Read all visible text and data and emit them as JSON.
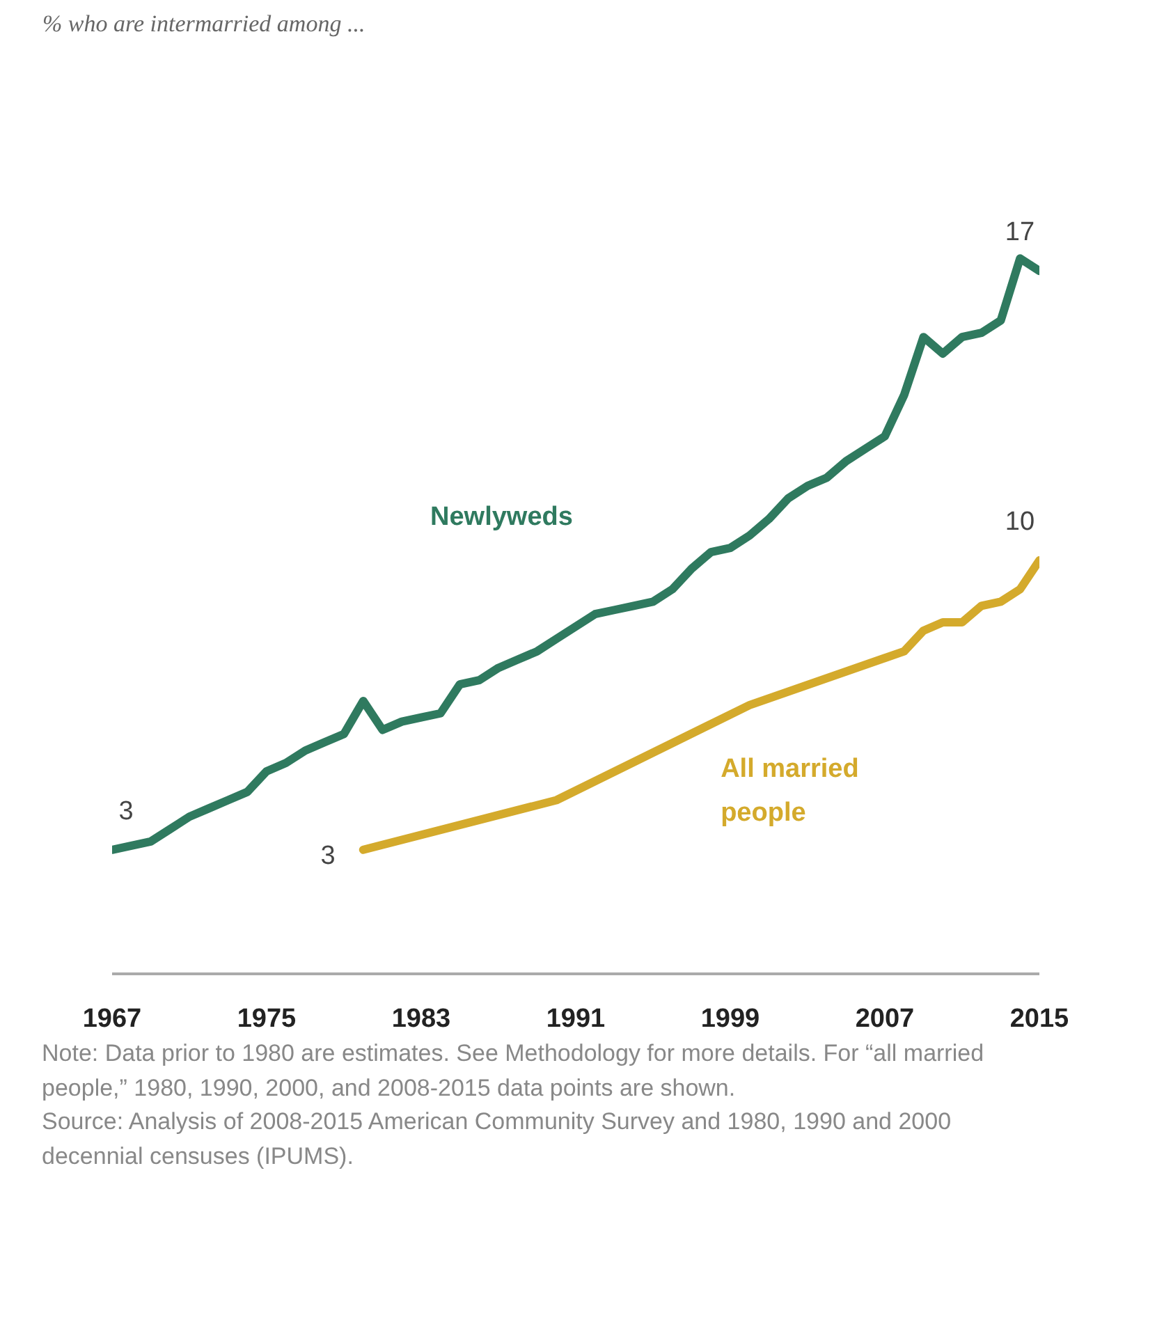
{
  "chart_data": {
    "type": "line",
    "title": "% who are intermarried among ...",
    "x": [
      1967,
      1968,
      1969,
      1970,
      1971,
      1972,
      1973,
      1974,
      1975,
      1976,
      1977,
      1978,
      1979,
      1980,
      1981,
      1982,
      1983,
      1984,
      1985,
      1986,
      1987,
      1988,
      1989,
      1990,
      1991,
      1992,
      1993,
      1994,
      1995,
      1996,
      1997,
      1998,
      1999,
      2000,
      2001,
      2002,
      2003,
      2004,
      2005,
      2006,
      2007,
      2008,
      2009,
      2010,
      2011,
      2012,
      2013,
      2014,
      2015
    ],
    "xlim": [
      1967,
      2015
    ],
    "xticks": [
      1967,
      1975,
      1983,
      1991,
      1999,
      2007,
      2015
    ],
    "series": [
      {
        "name": "Newlyweds",
        "color": "#2f7a5f",
        "values": [
          3.0,
          3.1,
          3.2,
          3.5,
          3.8,
          4.0,
          4.2,
          4.4,
          4.9,
          5.1,
          5.4,
          5.6,
          5.8,
          6.6,
          5.9,
          6.1,
          6.2,
          6.3,
          7.0,
          7.1,
          7.4,
          7.6,
          7.8,
          8.1,
          8.4,
          8.7,
          8.8,
          8.9,
          9.0,
          9.3,
          9.8,
          10.2,
          10.3,
          10.6,
          11.0,
          11.5,
          11.8,
          12.0,
          12.4,
          12.7,
          13.0,
          14.0,
          15.4,
          15.0,
          15.4,
          15.5,
          15.8,
          17.3,
          17.0
        ],
        "value_labels": [
          "3",
          null,
          null,
          null,
          null,
          null,
          null,
          null,
          null,
          null,
          null,
          null,
          null,
          null,
          null,
          null,
          null,
          null,
          null,
          null,
          null,
          null,
          null,
          null,
          null,
          null,
          null,
          null,
          null,
          null,
          null,
          null,
          null,
          null,
          null,
          null,
          null,
          null,
          null,
          null,
          null,
          null,
          null,
          null,
          null,
          null,
          null,
          null,
          "17"
        ]
      },
      {
        "name": "All married people",
        "color": "#d4aa2c",
        "x": [
          1980,
          1990,
          2000,
          2008,
          2009,
          2010,
          2011,
          2012,
          2013,
          2014,
          2015
        ],
        "values": [
          3.0,
          4.2,
          6.5,
          7.8,
          8.3,
          8.5,
          8.5,
          8.9,
          9.0,
          9.3,
          10.0
        ],
        "value_labels": [
          "3",
          null,
          null,
          null,
          null,
          null,
          null,
          null,
          null,
          null,
          "10"
        ]
      }
    ],
    "grid": false,
    "annotations": [
      "Note: Data prior to 1980 are estimates. See Methodology for more details. For “all married people,” 1980, 1990, 2000, and 2008-2015 data points are shown.",
      "Source: Analysis of 2008-2015 American Community Survey and 1980, 1990 and 2000 decennial censuses (IPUMS)."
    ]
  }
}
